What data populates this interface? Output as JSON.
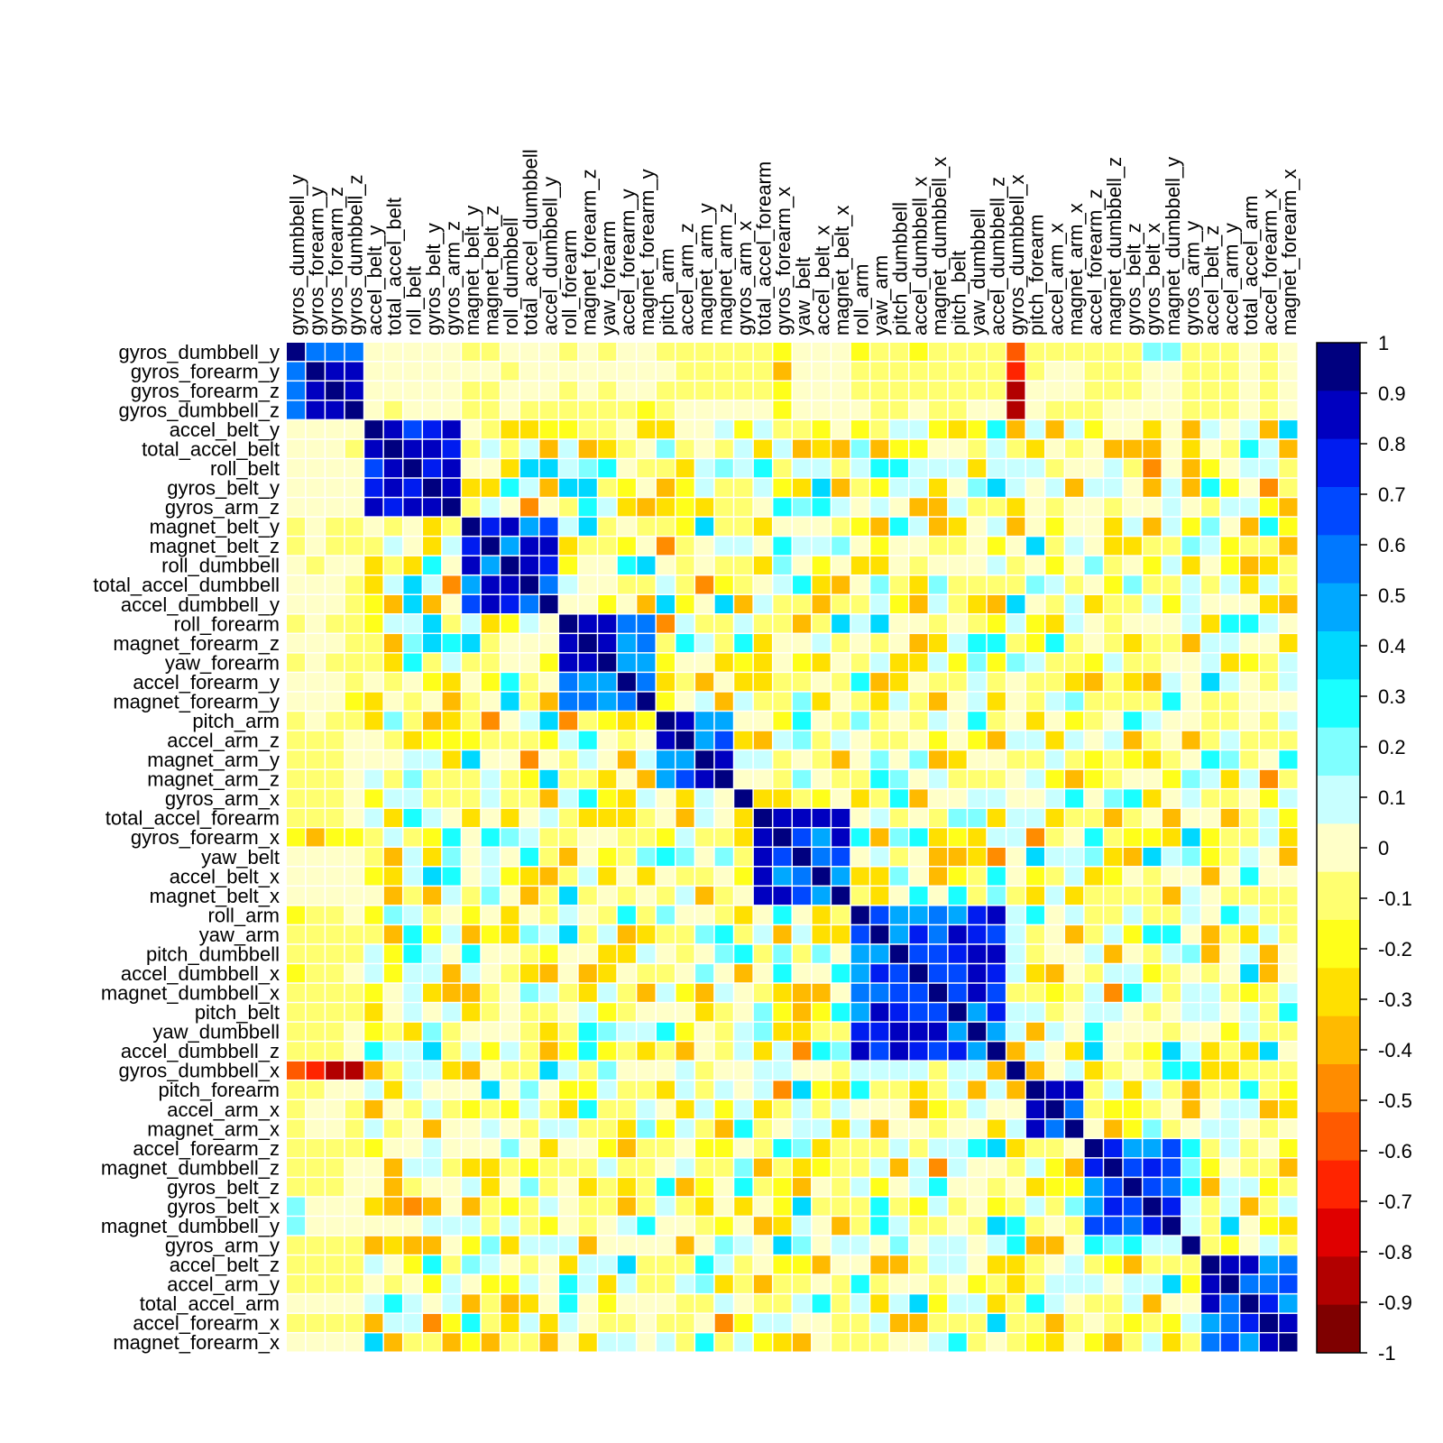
{
  "chart_data": {
    "type": "heatmap",
    "title": "",
    "variables": [
      "gyros_dumbbell_y",
      "gyros_forearm_y",
      "gyros_forearm_z",
      "gyros_dumbbell_z",
      "accel_belt_y",
      "total_accel_belt",
      "roll_belt",
      "gyros_belt_y",
      "gyros_arm_z",
      "magnet_belt_y",
      "magnet_belt_z",
      "roll_dumbbell",
      "total_accel_dumbbell",
      "accel_dumbbell_y",
      "roll_forearm",
      "magnet_forearm_z",
      "yaw_forearm",
      "accel_forearm_y",
      "magnet_forearm_y",
      "pitch_arm",
      "accel_arm_z",
      "magnet_arm_y",
      "magnet_arm_z",
      "gyros_arm_x",
      "total_accel_forearm",
      "gyros_forearm_x",
      "yaw_belt",
      "accel_belt_x",
      "magnet_belt_x",
      "roll_arm",
      "yaw_arm",
      "pitch_dumbbell",
      "accel_dumbbell_x",
      "magnet_dumbbell_x",
      "pitch_belt",
      "yaw_dumbbell",
      "accel_dumbbell_z",
      "gyros_dumbbell_x",
      "pitch_forearm",
      "accel_arm_x",
      "magnet_arm_x",
      "accel_forearm_z",
      "magnet_dumbbell_z",
      "gyros_belt_z",
      "gyros_belt_x",
      "magnet_dumbbell_y",
      "gyros_arm_y",
      "accel_belt_z",
      "accel_arm_y",
      "total_accel_arm",
      "accel_forearm_x",
      "magnet_forearm_x"
    ],
    "legend_ticks": [
      "1",
      "0.9",
      "0.8",
      "0.7",
      "0.6",
      "0.5",
      "0.4",
      "0.3",
      "0.2",
      "0.1",
      "0",
      "-0.1",
      "-0.2",
      "-0.3",
      "-0.4",
      "-0.5",
      "-0.6",
      "-0.7",
      "-0.8",
      "-0.9",
      "-1"
    ],
    "legend_range": [
      -1,
      1
    ],
    "legend_placement": "right",
    "color_scale": [
      "#7F0000",
      "#B20000",
      "#E00000",
      "#FF2400",
      "#FF5A00",
      "#FF8C00",
      "#FFBA00",
      "#FFE000",
      "#FFFF1A",
      "#FFFF70",
      "#FFFFC8",
      "#C8FFFF",
      "#7FFFFF",
      "#1AFFFF",
      "#00D8FF",
      "#00A8FF",
      "#0078FF",
      "#0048FF",
      "#001CF0",
      "#0000C0",
      "#00007F"
    ],
    "cells_note": "",
    "cells": [
      [
        1,
        0.6,
        0.6,
        0.6,
        0,
        0,
        0,
        0,
        0,
        -0.1,
        -0.1,
        0,
        0,
        0,
        -0.1,
        0,
        -0.1,
        0,
        0,
        -0.1,
        -0.1,
        -0.1,
        -0.1,
        -0.1,
        -0.1,
        -0.2,
        0,
        0,
        0,
        -0.2,
        -0.1,
        -0.1,
        -0.2,
        -0.1,
        -0.1,
        -0.1,
        -0.1,
        -0.6,
        -0.1,
        -0.1,
        -0.1,
        -0.1,
        -0.1,
        -0.1,
        0.2,
        0.2,
        -0.1,
        -0.1,
        -0.1,
        0,
        -0.1,
        0
      ],
      [
        0.6,
        1,
        0.9,
        0.9,
        0,
        0,
        0,
        0,
        0,
        0,
        0,
        -0.1,
        0,
        0,
        0,
        0,
        0,
        0,
        0,
        0,
        -0.1,
        -0.1,
        -0.1,
        -0.1,
        -0.1,
        -0.4,
        0,
        0,
        0,
        -0.1,
        -0.1,
        -0.1,
        -0.1,
        -0.1,
        -0.1,
        -0.1,
        -0.1,
        -0.7,
        -0.1,
        0,
        0,
        -0.1,
        -0.1,
        -0.1,
        0,
        0,
        -0.1,
        -0.1,
        -0.1,
        0,
        -0.1,
        0
      ],
      [
        0.6,
        0.9,
        1,
        0.9,
        0,
        0,
        0,
        0,
        0,
        -0.1,
        -0.1,
        0,
        0,
        0,
        -0.1,
        0,
        -0.1,
        0,
        0,
        -0.1,
        -0.1,
        -0.1,
        -0.1,
        -0.1,
        -0.1,
        -0.2,
        0,
        0,
        0,
        -0.1,
        -0.1,
        -0.1,
        -0.1,
        -0.1,
        -0.1,
        -0.1,
        -0.1,
        -0.9,
        0,
        0,
        0,
        -0.1,
        -0.1,
        -0.1,
        0,
        0,
        -0.1,
        -0.1,
        -0.1,
        0,
        -0.1,
        0
      ],
      [
        0.6,
        0.9,
        0.9,
        1,
        0,
        -0.1,
        0,
        0,
        0,
        -0.1,
        -0.1,
        0,
        -0.1,
        -0.1,
        -0.1,
        -0.1,
        -0.1,
        -0.1,
        -0.2,
        -0.1,
        0,
        0,
        0,
        0,
        0,
        -0.2,
        0,
        0,
        0,
        0,
        -0.1,
        -0.1,
        0,
        -0.1,
        -0.1,
        0,
        0,
        -0.9,
        0,
        -0.1,
        -0.1,
        -0.1,
        0,
        0,
        0,
        0,
        -0.1,
        -0.1,
        -0.1,
        0,
        -0.1,
        0
      ]
    ]
  }
}
